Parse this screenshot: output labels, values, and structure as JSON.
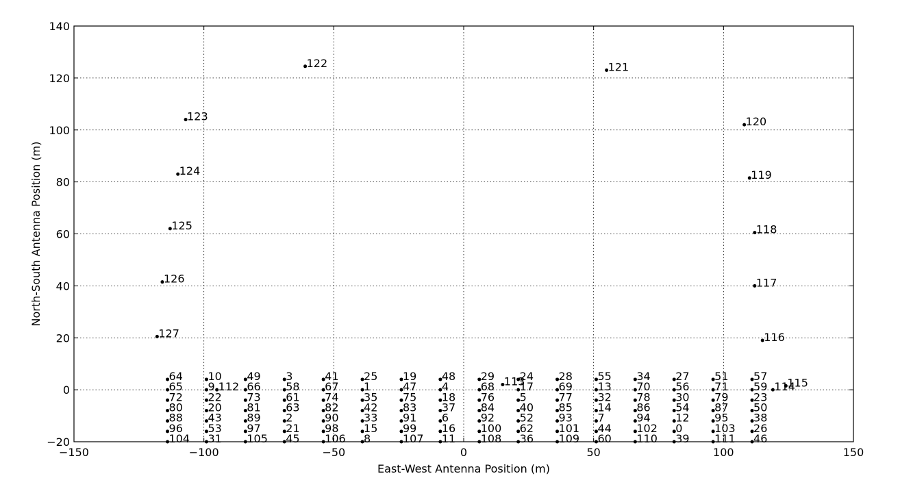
{
  "chart_data": {
    "type": "scatter",
    "title": "",
    "xlabel": "East-West Antenna Position (m)",
    "ylabel": "North-South Antenna Position (m)",
    "xlim": [
      -150,
      150
    ],
    "ylim": [
      -20,
      140
    ],
    "xticks": [
      -150,
      -100,
      -50,
      0,
      50,
      100,
      150
    ],
    "yticks": [
      -20,
      0,
      20,
      40,
      60,
      80,
      100,
      120,
      140
    ],
    "xtick_labels": [
      "−150",
      "−100",
      "−50",
      "0",
      "50",
      "100",
      "150"
    ],
    "ytick_labels": [
      "−20",
      "0",
      "20",
      "40",
      "60",
      "80",
      "100",
      "120",
      "140"
    ],
    "grid": true,
    "legend": "none",
    "point_color": "#000000",
    "points": [
      {
        "label": "0",
        "x": 81,
        "y": -16
      },
      {
        "label": "1",
        "x": -39,
        "y": 0
      },
      {
        "label": "2",
        "x": -69,
        "y": -12
      },
      {
        "label": "3",
        "x": -69,
        "y": 4
      },
      {
        "label": "4",
        "x": -9,
        "y": 0
      },
      {
        "label": "5",
        "x": 21,
        "y": -4
      },
      {
        "label": "6",
        "x": -9,
        "y": -12
      },
      {
        "label": "7",
        "x": 51,
        "y": -12
      },
      {
        "label": "8",
        "x": -39,
        "y": -20
      },
      {
        "label": "9",
        "x": -99,
        "y": 0
      },
      {
        "label": "10",
        "x": -99,
        "y": 4
      },
      {
        "label": "11",
        "x": -9,
        "y": -20
      },
      {
        "label": "12",
        "x": 81,
        "y": -12
      },
      {
        "label": "13",
        "x": 51,
        "y": 0
      },
      {
        "label": "14",
        "x": 51,
        "y": -8
      },
      {
        "label": "15",
        "x": -39,
        "y": -16
      },
      {
        "label": "16",
        "x": -9,
        "y": -16
      },
      {
        "label": "17",
        "x": 21,
        "y": 0
      },
      {
        "label": "18",
        "x": -9,
        "y": -4
      },
      {
        "label": "19",
        "x": -24,
        "y": 4
      },
      {
        "label": "20",
        "x": -99,
        "y": -8
      },
      {
        "label": "21",
        "x": -69,
        "y": -16
      },
      {
        "label": "22",
        "x": -99,
        "y": -4
      },
      {
        "label": "23",
        "x": 111,
        "y": -4
      },
      {
        "label": "24",
        "x": 21,
        "y": 4
      },
      {
        "label": "25",
        "x": -39,
        "y": 4
      },
      {
        "label": "26",
        "x": 111,
        "y": -16
      },
      {
        "label": "27",
        "x": 81,
        "y": 4
      },
      {
        "label": "28",
        "x": 36,
        "y": 4
      },
      {
        "label": "29",
        "x": 6,
        "y": 4
      },
      {
        "label": "30",
        "x": 81,
        "y": -4
      },
      {
        "label": "31",
        "x": -99,
        "y": -20
      },
      {
        "label": "32",
        "x": 51,
        "y": -4
      },
      {
        "label": "33",
        "x": -39,
        "y": -12
      },
      {
        "label": "34",
        "x": 66,
        "y": 4
      },
      {
        "label": "35",
        "x": -39,
        "y": -4
      },
      {
        "label": "36",
        "x": 21,
        "y": -20
      },
      {
        "label": "37",
        "x": -9,
        "y": -8
      },
      {
        "label": "38",
        "x": 111,
        "y": -12
      },
      {
        "label": "39",
        "x": 81,
        "y": -20
      },
      {
        "label": "40",
        "x": 21,
        "y": -8
      },
      {
        "label": "41",
        "x": -54,
        "y": 4
      },
      {
        "label": "42",
        "x": -39,
        "y": -8
      },
      {
        "label": "43",
        "x": -99,
        "y": -12
      },
      {
        "label": "44",
        "x": 51,
        "y": -16
      },
      {
        "label": "45",
        "x": -69,
        "y": -20
      },
      {
        "label": "46",
        "x": 111,
        "y": -20
      },
      {
        "label": "47",
        "x": -24,
        "y": 0
      },
      {
        "label": "48",
        "x": -9,
        "y": 4
      },
      {
        "label": "49",
        "x": -84,
        "y": 4
      },
      {
        "label": "50",
        "x": 111,
        "y": -8
      },
      {
        "label": "51",
        "x": 96,
        "y": 4
      },
      {
        "label": "52",
        "x": 21,
        "y": -12
      },
      {
        "label": "53",
        "x": -99,
        "y": -16
      },
      {
        "label": "54",
        "x": 81,
        "y": -8
      },
      {
        "label": "55",
        "x": 51,
        "y": 4
      },
      {
        "label": "56",
        "x": 81,
        "y": 0
      },
      {
        "label": "57",
        "x": 111,
        "y": 4
      },
      {
        "label": "58",
        "x": -69,
        "y": 0
      },
      {
        "label": "59",
        "x": 111,
        "y": 0
      },
      {
        "label": "60",
        "x": 51,
        "y": -20
      },
      {
        "label": "61",
        "x": -69,
        "y": -4
      },
      {
        "label": "62",
        "x": 21,
        "y": -16
      },
      {
        "label": "63",
        "x": -69,
        "y": -8
      },
      {
        "label": "64",
        "x": -114,
        "y": 4
      },
      {
        "label": "65",
        "x": -114,
        "y": 0
      },
      {
        "label": "66",
        "x": -84,
        "y": 0
      },
      {
        "label": "67",
        "x": -54,
        "y": 0
      },
      {
        "label": "68",
        "x": 6,
        "y": 0
      },
      {
        "label": "69",
        "x": 36,
        "y": 0
      },
      {
        "label": "70",
        "x": 66,
        "y": 0
      },
      {
        "label": "71",
        "x": 96,
        "y": 0
      },
      {
        "label": "72",
        "x": -114,
        "y": -4
      },
      {
        "label": "73",
        "x": -84,
        "y": -4
      },
      {
        "label": "74",
        "x": -54,
        "y": -4
      },
      {
        "label": "75",
        "x": -24,
        "y": -4
      },
      {
        "label": "76",
        "x": 6,
        "y": -4
      },
      {
        "label": "77",
        "x": 36,
        "y": -4
      },
      {
        "label": "78",
        "x": 66,
        "y": -4
      },
      {
        "label": "79",
        "x": 96,
        "y": -4
      },
      {
        "label": "80",
        "x": -114,
        "y": -8
      },
      {
        "label": "81",
        "x": -84,
        "y": -8
      },
      {
        "label": "82",
        "x": -54,
        "y": -8
      },
      {
        "label": "83",
        "x": -24,
        "y": -8
      },
      {
        "label": "84",
        "x": 6,
        "y": -8
      },
      {
        "label": "85",
        "x": 36,
        "y": -8
      },
      {
        "label": "86",
        "x": 66,
        "y": -8
      },
      {
        "label": "87",
        "x": 96,
        "y": -8
      },
      {
        "label": "88",
        "x": -114,
        "y": -12
      },
      {
        "label": "89",
        "x": -84,
        "y": -12
      },
      {
        "label": "90",
        "x": -54,
        "y": -12
      },
      {
        "label": "91",
        "x": -24,
        "y": -12
      },
      {
        "label": "92",
        "x": 6,
        "y": -12
      },
      {
        "label": "93",
        "x": 36,
        "y": -12
      },
      {
        "label": "94",
        "x": 66,
        "y": -12
      },
      {
        "label": "95",
        "x": 96,
        "y": -12
      },
      {
        "label": "96",
        "x": -114,
        "y": -16
      },
      {
        "label": "97",
        "x": -84,
        "y": -16
      },
      {
        "label": "98",
        "x": -54,
        "y": -16
      },
      {
        "label": "99",
        "x": -24,
        "y": -16
      },
      {
        "label": "100",
        "x": 6,
        "y": -16
      },
      {
        "label": "101",
        "x": 36,
        "y": -16
      },
      {
        "label": "102",
        "x": 66,
        "y": -16
      },
      {
        "label": "103",
        "x": 96,
        "y": -16
      },
      {
        "label": "104",
        "x": -114,
        "y": -20
      },
      {
        "label": "105",
        "x": -84,
        "y": -20
      },
      {
        "label": "106",
        "x": -54,
        "y": -20
      },
      {
        "label": "107",
        "x": -24,
        "y": -20
      },
      {
        "label": "108",
        "x": 6,
        "y": -20
      },
      {
        "label": "109",
        "x": 36,
        "y": -20
      },
      {
        "label": "110",
        "x": 66,
        "y": -20
      },
      {
        "label": "111",
        "x": 96,
        "y": -20
      },
      {
        "label": "112",
        "x": -95,
        "y": 0
      },
      {
        "label": "113",
        "x": 15,
        "y": 2
      },
      {
        "label": "114",
        "x": 119,
        "y": 0
      },
      {
        "label": "115",
        "x": 124,
        "y": 1.5
      },
      {
        "label": "116",
        "x": 115,
        "y": 19
      },
      {
        "label": "117",
        "x": 112,
        "y": 40
      },
      {
        "label": "118",
        "x": 112,
        "y": 60.5
      },
      {
        "label": "119",
        "x": 110,
        "y": 81.5
      },
      {
        "label": "120",
        "x": 108,
        "y": 102
      },
      {
        "label": "121",
        "x": 55,
        "y": 123
      },
      {
        "label": "122",
        "x": -61,
        "y": 124.5
      },
      {
        "label": "123",
        "x": -107,
        "y": 104
      },
      {
        "label": "124",
        "x": -110,
        "y": 83
      },
      {
        "label": "125",
        "x": -113,
        "y": 62
      },
      {
        "label": "126",
        "x": -116,
        "y": 41.5
      },
      {
        "label": "127",
        "x": -118,
        "y": 20.5
      }
    ]
  }
}
